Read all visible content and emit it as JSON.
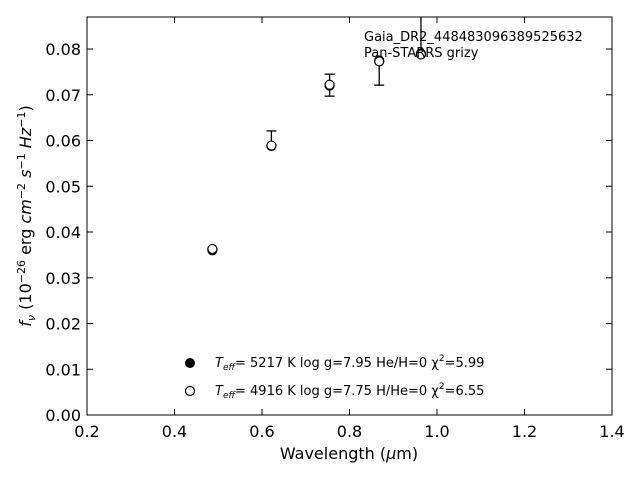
{
  "chart_data": {
    "type": "scatter",
    "annotations": [
      "Gaia_DR2_448483096389525632",
      "Pan-STARRS grizy"
    ],
    "xlabel": "Wavelength (μm)",
    "ylabel": "fν (10⁻²⁶ erg cm⁻² s⁻¹ Hz⁻¹)",
    "xlim": [
      0.2,
      1.4
    ],
    "ylim": [
      0.0,
      0.087
    ],
    "xticks": [
      "0.2",
      "0.4",
      "0.6",
      "0.8",
      "1.0",
      "1.2",
      "1.4"
    ],
    "yticks": [
      "0.00",
      "0.01",
      "0.02",
      "0.03",
      "0.04",
      "0.05",
      "0.06",
      "0.07",
      "0.08"
    ],
    "grid": false,
    "observed": {
      "x": [
        0.4866,
        0.6215,
        0.7545,
        0.8679,
        0.9633
      ],
      "y": [
        0.0362,
        0.059,
        0.0721,
        0.0772,
        0.0786
      ],
      "yerr_low": [
        0.0362,
        0.059,
        0.0697,
        0.0721,
        0.0786
      ],
      "yerr_high": [
        0.0364,
        0.0621,
        0.0745,
        0.0772,
        0.088
      ]
    },
    "series": [
      {
        "marker": "filled",
        "x": [
          0.4866,
          0.6215,
          0.7545,
          0.8679,
          0.9633
        ],
        "y": [
          0.036,
          0.0588,
          0.072,
          0.0775,
          0.079
        ],
        "label_parts": [
          "T",
          "eff",
          "=  5217 K  log g=7.95  He/H=0  χ",
          "2",
          "=5.99"
        ]
      },
      {
        "marker": "open",
        "x": [
          0.4866,
          0.6215,
          0.7545,
          0.8679,
          0.9633
        ],
        "y": [
          0.0363,
          0.0589,
          0.0722,
          0.0773,
          0.0788
        ],
        "label_parts": [
          "T",
          "eff",
          "=  4916 K  log g=7.75  H/He=0  χ",
          "2",
          "=6.55"
        ]
      }
    ],
    "legend_position": "bottom-center"
  }
}
